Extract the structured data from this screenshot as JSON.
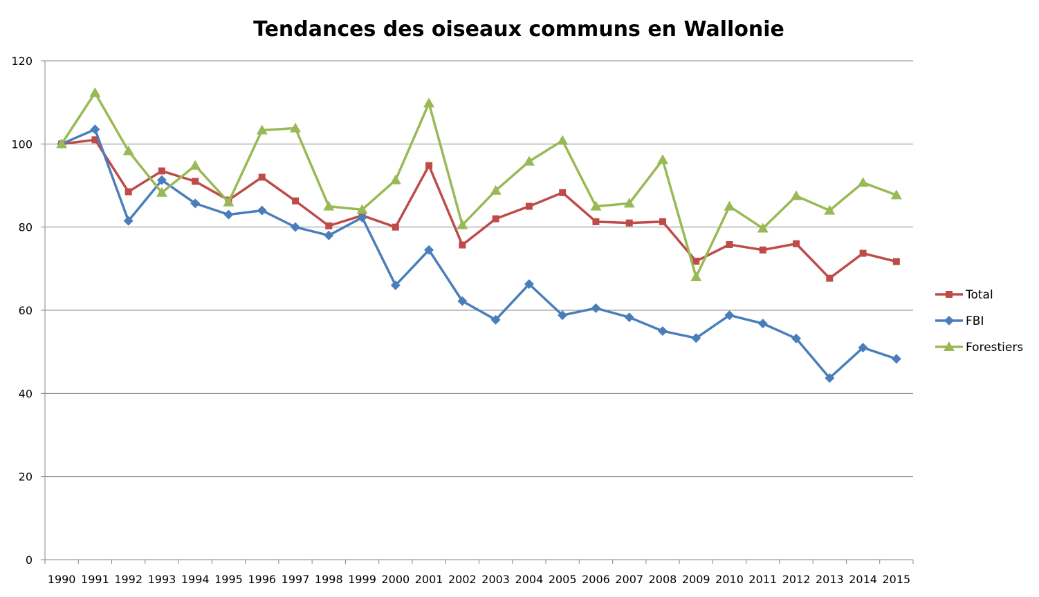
{
  "chart_data": {
    "type": "line",
    "title": "Tendances des oiseaux communs en Wallonie",
    "xlabel": "",
    "ylabel": "",
    "ylim": [
      0,
      120
    ],
    "yticks": [
      0,
      20,
      40,
      60,
      80,
      100,
      120
    ],
    "grid": true,
    "legend_position": "right",
    "categories": [
      "1990",
      "1991",
      "1992",
      "1993",
      "1994",
      "1995",
      "1996",
      "1997",
      "1998",
      "1999",
      "2000",
      "2001",
      "2002",
      "2003",
      "2004",
      "2005",
      "2006",
      "2007",
      "2008",
      "2009",
      "2010",
      "2011",
      "2012",
      "2013",
      "2014",
      "2015"
    ],
    "series": [
      {
        "name": "Total",
        "color": "#be4b48",
        "marker": "square",
        "values": [
          100,
          101,
          88.5,
          93.5,
          91,
          86.5,
          92,
          86.3,
          80.3,
          82.8,
          80,
          94.8,
          75.7,
          82,
          85,
          88.3,
          81.3,
          81,
          81.3,
          71.8,
          75.8,
          74.5,
          76,
          67.7,
          73.7,
          71.7
        ]
      },
      {
        "name": "FBI",
        "color": "#4a7ebb",
        "marker": "diamond",
        "values": [
          100,
          103.5,
          81.5,
          91.3,
          85.7,
          83,
          84,
          80,
          78,
          82.3,
          66,
          74.5,
          62.2,
          57.7,
          66.3,
          58.8,
          60.5,
          58.3,
          55,
          53.3,
          58.8,
          56.8,
          53.2,
          43.7,
          51,
          48.3
        ]
      },
      {
        "name": "Forestiers",
        "color": "#98b954",
        "marker": "triangle",
        "values": [
          100,
          112.3,
          98.3,
          88.3,
          94.8,
          86,
          103.3,
          103.8,
          85,
          84.2,
          91.3,
          109.8,
          80.5,
          88.8,
          95.8,
          100.8,
          85,
          85.7,
          96.2,
          68,
          85,
          79.7,
          87.5,
          84,
          90.7,
          87.7
        ]
      }
    ]
  }
}
